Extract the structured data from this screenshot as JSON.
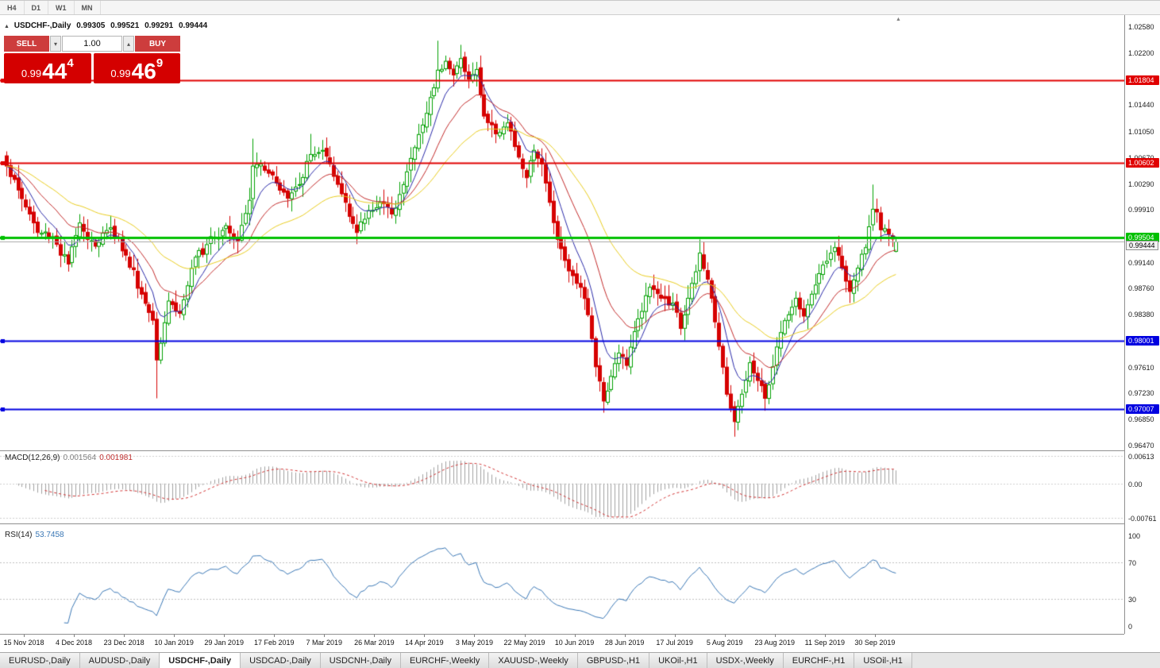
{
  "toolbar": {
    "timeframes": [
      "H4",
      "D1",
      "W1",
      "MN"
    ]
  },
  "chart": {
    "symbol_title": "USDCHF-,Daily",
    "ohlc": {
      "open": "0.99305",
      "high": "0.99521",
      "low": "0.99291",
      "close": "0.99444"
    },
    "collapse_icon": "▲",
    "shift_icon": "▲",
    "trade_panel": {
      "sell_label": "SELL",
      "buy_label": "BUY",
      "volume": "1.00",
      "spinner_down_icon": "▾",
      "spinner_up_icon": "▴",
      "sell_price": {
        "prefix": "0.99",
        "big": "44",
        "sup": "4"
      },
      "buy_price": {
        "prefix": "0.99",
        "big": "46",
        "sup": "9"
      }
    },
    "axis_ticks": [
      {
        "label": "1.02580",
        "price": 1.0258
      },
      {
        "label": "1.02200",
        "price": 1.022
      },
      {
        "label": "1.01440",
        "price": 1.0144
      },
      {
        "label": "1.01050",
        "price": 1.0105
      },
      {
        "label": "1.00670",
        "price": 1.0067
      },
      {
        "label": "1.00290",
        "price": 1.0029
      },
      {
        "label": "0.99910",
        "price": 0.9991
      },
      {
        "label": "0.99140",
        "price": 0.9914
      },
      {
        "label": "0.98760",
        "price": 0.9876
      },
      {
        "label": "0.98380",
        "price": 0.9838
      },
      {
        "label": "0.97610",
        "price": 0.9761
      },
      {
        "label": "0.97230",
        "price": 0.9723
      },
      {
        "label": "0.96850",
        "price": 0.9685
      },
      {
        "label": "0.96470",
        "price": 0.9647
      }
    ],
    "hlines": [
      {
        "label": "1.01804",
        "price": 1.01804,
        "color": "#e00000",
        "width": 2
      },
      {
        "label": "1.00602",
        "price": 1.00602,
        "color": "#e00000",
        "width": 2
      },
      {
        "label": "0.99504",
        "price": 0.99504,
        "color": "#00c000",
        "width": 3
      },
      {
        "label": "0.98001",
        "price": 0.98001,
        "color": "#0000e0",
        "width": 2
      },
      {
        "label": "0.97007",
        "price": 0.97007,
        "color": "#0000e0",
        "width": 2
      }
    ],
    "bid": {
      "label": "0.99444",
      "price": 0.99444,
      "color": "#aaaaaa"
    }
  },
  "chart_data": {
    "type": "candlestick",
    "symbol": "USDCHF",
    "timeframe": "Daily",
    "bars": 232,
    "visible_price_range": [
      0.9647,
      1.0258
    ],
    "colors": {
      "up": "#00a000",
      "up_fill": "#ffffff",
      "down": "#d60000"
    },
    "price_anchors": [
      [
        0,
        1.0055
      ],
      [
        3,
        1.002
      ],
      [
        6,
        0.9985
      ],
      [
        8,
        0.9958
      ],
      [
        12,
        0.9952
      ],
      [
        16,
        0.9912
      ],
      [
        19,
        0.9972
      ],
      [
        23,
        0.9938
      ],
      [
        27,
        0.9965
      ],
      [
        31,
        0.9925
      ],
      [
        35,
        0.9868
      ],
      [
        38,
        0.983
      ],
      [
        39,
        0.9772
      ],
      [
        42,
        0.9858
      ],
      [
        45,
        0.984
      ],
      [
        49,
        0.9922
      ],
      [
        53,
        0.9952
      ],
      [
        57,
        0.9968
      ],
      [
        60,
        0.9946
      ],
      [
        63,
        1.0005
      ],
      [
        64,
        1.0055
      ],
      [
        66,
        1.0058
      ],
      [
        69,
        1.0042
      ],
      [
        73,
        1.0008
      ],
      [
        76,
        1.0028
      ],
      [
        79,
        1.0072
      ],
      [
        82,
        1.0078
      ],
      [
        85,
        1.004
      ],
      [
        88,
        1.0002
      ],
      [
        91,
        0.9958
      ],
      [
        94,
        0.999
      ],
      [
        97,
        1.0002
      ],
      [
        100,
        0.9985
      ],
      [
        103,
        1.0028
      ],
      [
        106,
        1.0082
      ],
      [
        109,
        1.0132
      ],
      [
        112,
        1.0195
      ],
      [
        114,
        1.0208
      ],
      [
        116,
        1.0188
      ],
      [
        118,
        1.0212
      ],
      [
        120,
        1.0182
      ],
      [
        122,
        1.0196
      ],
      [
        124,
        1.0128
      ],
      [
        127,
        1.0102
      ],
      [
        130,
        1.0118
      ],
      [
        133,
        1.0068
      ],
      [
        135,
        1.0038
      ],
      [
        137,
        1.0078
      ],
      [
        139,
        1.0058
      ],
      [
        141,
        1.0002
      ],
      [
        143,
        0.9948
      ],
      [
        146,
        0.9902
      ],
      [
        149,
        0.9878
      ],
      [
        151,
        0.9838
      ],
      [
        153,
        0.9762
      ],
      [
        155,
        0.9712
      ],
      [
        157,
        0.9748
      ],
      [
        159,
        0.9782
      ],
      [
        161,
        0.9764
      ],
      [
        164,
        0.9832
      ],
      [
        167,
        0.9878
      ],
      [
        170,
        0.9862
      ],
      [
        173,
        0.9855
      ],
      [
        175,
        0.9818
      ],
      [
        177,
        0.9862
      ],
      [
        180,
        0.9928
      ],
      [
        183,
        0.9862
      ],
      [
        185,
        0.9792
      ],
      [
        187,
        0.9722
      ],
      [
        189,
        0.9682
      ],
      [
        191,
        0.9722
      ],
      [
        193,
        0.9768
      ],
      [
        195,
        0.9742
      ],
      [
        197,
        0.9716
      ],
      [
        199,
        0.9762
      ],
      [
        201,
        0.9812
      ],
      [
        203,
        0.9838
      ],
      [
        205,
        0.9862
      ],
      [
        207,
        0.9836
      ],
      [
        209,
        0.9868
      ],
      [
        211,
        0.9898
      ],
      [
        213,
        0.9916
      ],
      [
        215,
        0.9936
      ],
      [
        217,
        0.9906
      ],
      [
        219,
        0.9872
      ],
      [
        221,
        0.9906
      ],
      [
        223,
        0.9936
      ],
      [
        225,
        0.9992
      ],
      [
        226,
        0.9988
      ],
      [
        227,
        0.9962
      ],
      [
        229,
        0.9956
      ],
      [
        231,
        0.99444
      ]
    ],
    "events": [
      {
        "bar": 0,
        "high": 1.0072
      },
      {
        "bar": 39,
        "low": 0.9716
      },
      {
        "bar": 64,
        "high": 1.0095
      },
      {
        "bar": 79,
        "high": 1.0102
      },
      {
        "bar": 112,
        "high": 1.0238
      },
      {
        "bar": 118,
        "high": 1.0232
      },
      {
        "bar": 155,
        "low": 0.9695
      },
      {
        "bar": 180,
        "high": 0.9948
      },
      {
        "bar": 189,
        "low": 0.966
      },
      {
        "bar": 225,
        "high": 1.0028
      }
    ],
    "last_bar": {
      "open": 0.99305,
      "high": 0.99521,
      "low": 0.99291,
      "close": 0.99444
    },
    "moving_averages": [
      {
        "period": 8,
        "color": "#2929a8"
      },
      {
        "period": 18,
        "color": "#c22a2a"
      },
      {
        "period": 40,
        "color": "#e8cc1e"
      }
    ]
  },
  "macd": {
    "name": "MACD(12,26,9)",
    "value_main": "0.001564",
    "value_signal": "0.001981",
    "params": [
      12,
      26,
      9
    ],
    "axis": [
      {
        "label": "0.00613",
        "value": 0.00613
      },
      {
        "label": "0.00",
        "value": 0
      },
      {
        "label": "-0.00761",
        "value": -0.00761
      }
    ],
    "colors": {
      "histogram": "#a0a0a0",
      "signal": "#d03030"
    }
  },
  "rsi": {
    "name": "RSI(14)",
    "value": "53.7458",
    "period": 14,
    "axis": [
      {
        "label": "100",
        "value": 100
      },
      {
        "label": "70",
        "value": 70
      },
      {
        "label": "30",
        "value": 30
      },
      {
        "label": "0",
        "value": 0
      }
    ],
    "levels": [
      70,
      30
    ],
    "color": "#3a77b5"
  },
  "timeline": {
    "dates": [
      "15 Nov 2018",
      "4 Dec 2018",
      "23 Dec 2018",
      "10 Jan 2019",
      "29 Jan 2019",
      "17 Feb 2019",
      "7 Mar 2019",
      "26 Mar 2019",
      "14 Apr 2019",
      "3 May 2019",
      "22 May 2019",
      "10 Jun 2019",
      "28 Jun 2019",
      "17 Jul 2019",
      "5 Aug 2019",
      "23 Aug 2019",
      "11 Sep 2019",
      "30 Sep 2019"
    ]
  },
  "tabs": [
    {
      "label": "EURUSD-,Daily"
    },
    {
      "label": "AUDUSD-,Daily"
    },
    {
      "label": "USDCHF-,Daily",
      "active": true
    },
    {
      "label": "USDCAD-,Daily"
    },
    {
      "label": "USDCNH-,Daily"
    },
    {
      "label": "EURCHF-,Weekly"
    },
    {
      "label": "XAUUSD-,Weekly"
    },
    {
      "label": "GBPUSD-,H1"
    },
    {
      "label": "UKOil-,H1"
    },
    {
      "label": "USDX-,Weekly"
    },
    {
      "label": "EURCHF-,H1"
    },
    {
      "label": "USOil-,H1"
    }
  ]
}
